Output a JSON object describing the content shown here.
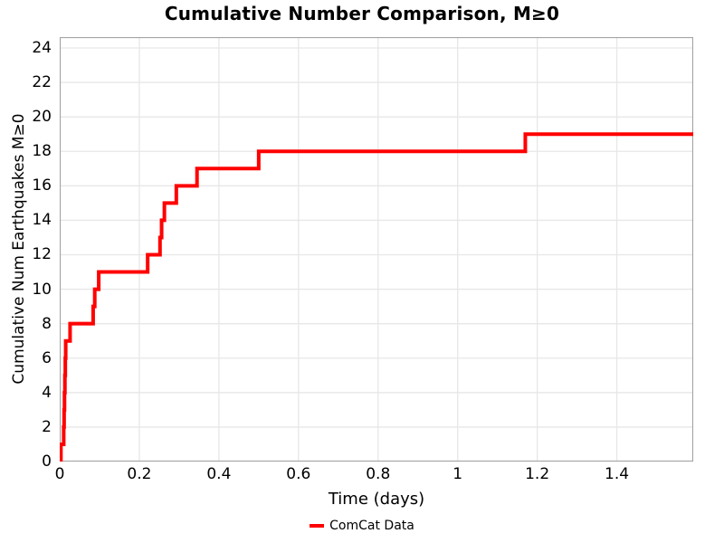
{
  "title": "Cumulative Number Comparison, M≥0",
  "colors": {
    "line": "#ff0000",
    "grid": "#e7e7e7",
    "spine": "#a3a3a3",
    "background": "#ffffff",
    "text": "#000000"
  },
  "legend": {
    "entries": [
      {
        "label": "ComCat Data",
        "color": "#ff0000"
      }
    ],
    "position": "bottom-center"
  },
  "chart_data": {
    "type": "line",
    "mode": "step-post",
    "title": "Cumulative Number Comparison, M≥0",
    "xlabel": "Time (days)",
    "ylabel": "Cumulative Num Earthquakes M≥0",
    "xlim": [
      0,
      1.592
    ],
    "ylim": [
      0,
      24.63
    ],
    "x_ticks": [
      0,
      0.2,
      0.4,
      0.6,
      0.8,
      1.0,
      1.2,
      1.4
    ],
    "x_tick_labels": [
      "0",
      "0.2",
      "0.4",
      "0.6",
      "0.8",
      "1",
      "1.2",
      "1.4"
    ],
    "y_ticks": [
      0,
      2,
      4,
      6,
      8,
      10,
      12,
      14,
      16,
      18,
      20,
      22,
      24
    ],
    "y_tick_labels": [
      "0",
      "2",
      "4",
      "6",
      "8",
      "10",
      "12",
      "14",
      "16",
      "18",
      "20",
      "22",
      "24"
    ],
    "grid": true,
    "legend_position": "bottom-center",
    "series": [
      {
        "name": "ComCat Data",
        "color": "#ff0000",
        "line_width": 4,
        "points": [
          [
            0,
            0
          ],
          [
            0.003,
            1
          ],
          [
            0.01,
            2
          ],
          [
            0.011,
            3
          ],
          [
            0.012,
            4
          ],
          [
            0.013,
            5
          ],
          [
            0.014,
            6
          ],
          [
            0.015,
            7
          ],
          [
            0.026,
            8
          ],
          [
            0.084,
            9
          ],
          [
            0.088,
            10
          ],
          [
            0.098,
            11
          ],
          [
            0.221,
            12
          ],
          [
            0.252,
            13
          ],
          [
            0.256,
            14
          ],
          [
            0.263,
            15
          ],
          [
            0.293,
            16
          ],
          [
            0.345,
            17
          ],
          [
            0.5,
            18
          ],
          [
            1.17,
            19
          ]
        ],
        "end_x": 1.592,
        "final_value": 19
      }
    ]
  }
}
